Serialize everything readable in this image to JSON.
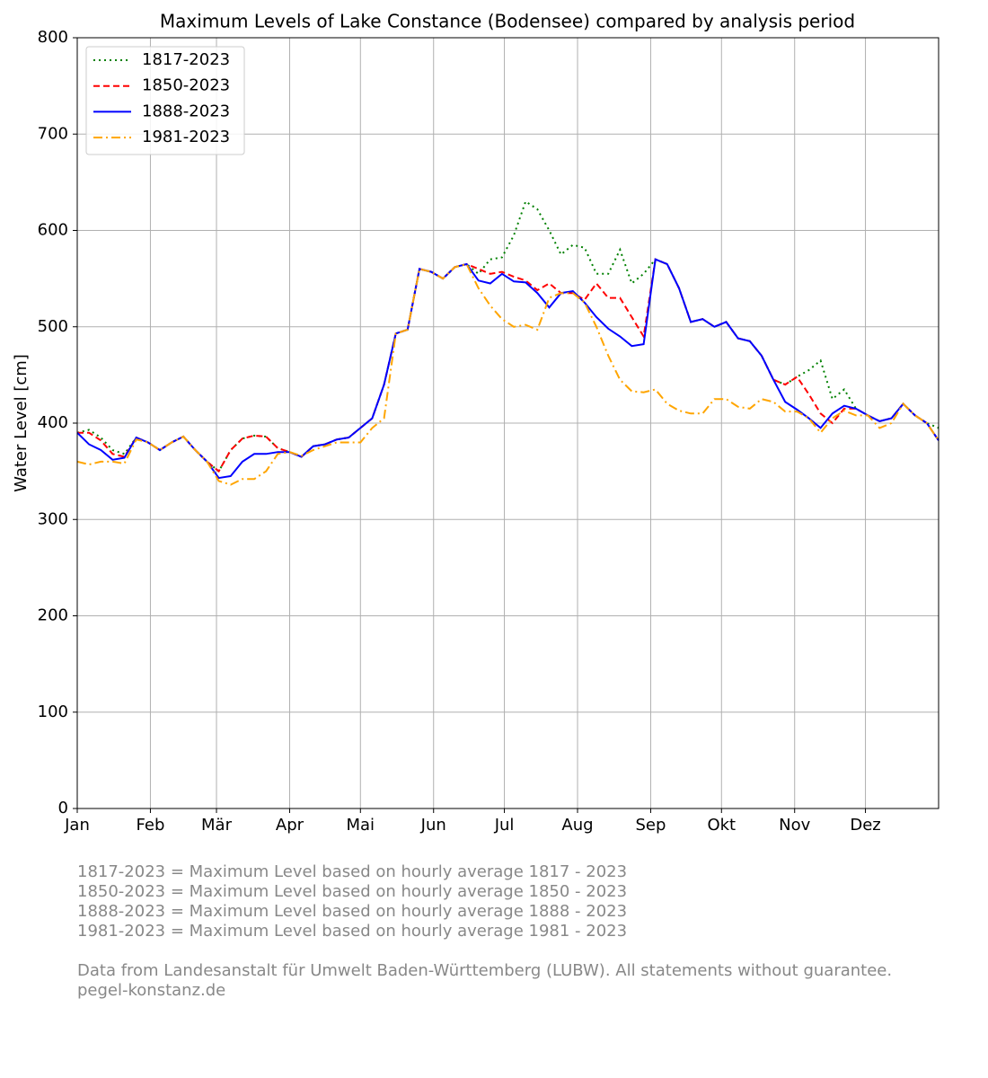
{
  "chart_data": {
    "type": "line",
    "title": "Maximum Levels of Lake Constance (Bodensee) compared by analysis period",
    "ylabel": "Water Level [cm]",
    "xlim": [
      0,
      365
    ],
    "ylim": [
      0,
      800
    ],
    "xticks": [
      {
        "value": 0,
        "label": "Jan"
      },
      {
        "value": 31,
        "label": "Feb"
      },
      {
        "value": 59,
        "label": "Mär"
      },
      {
        "value": 90,
        "label": "Apr"
      },
      {
        "value": 120,
        "label": "Mai"
      },
      {
        "value": 151,
        "label": "Jun"
      },
      {
        "value": 181,
        "label": "Jul"
      },
      {
        "value": 212,
        "label": "Aug"
      },
      {
        "value": 243,
        "label": "Sep"
      },
      {
        "value": 273,
        "label": "Okt"
      },
      {
        "value": 304,
        "label": "Nov"
      },
      {
        "value": 334,
        "label": "Dez"
      }
    ],
    "yticks": [
      0,
      100,
      200,
      300,
      400,
      500,
      600,
      700,
      800
    ],
    "grid": true,
    "legend": "upper left",
    "x": [
      0,
      5,
      10,
      15,
      20,
      25,
      30,
      35,
      40,
      45,
      50,
      55,
      60,
      65,
      70,
      75,
      80,
      85,
      90,
      95,
      100,
      105,
      110,
      115,
      120,
      125,
      130,
      135,
      140,
      145,
      150,
      155,
      160,
      165,
      170,
      175,
      180,
      185,
      190,
      195,
      200,
      205,
      210,
      215,
      220,
      225,
      230,
      235,
      240,
      245,
      250,
      255,
      260,
      265,
      270,
      275,
      280,
      285,
      290,
      295,
      300,
      305,
      310,
      315,
      320,
      325,
      330,
      335,
      340,
      345,
      350,
      355,
      360,
      365
    ],
    "series": [
      {
        "name": "1817-2023",
        "color": "green",
        "linestyle": "dotted",
        "values": [
          390,
          393,
          385,
          372,
          368,
          385,
          380,
          372,
          380,
          386,
          372,
          360,
          350,
          372,
          384,
          387,
          386,
          374,
          370,
          365,
          376,
          378,
          383,
          385,
          395,
          405,
          440,
          493,
          497,
          560,
          557,
          550,
          562,
          565,
          555,
          570,
          572,
          595,
          630,
          622,
          600,
          575,
          585,
          582,
          555,
          555,
          580,
          545,
          555,
          570,
          565,
          540,
          505,
          508,
          500,
          505,
          488,
          485,
          470,
          445,
          440,
          448,
          455,
          465,
          425,
          435,
          415,
          408,
          402,
          405,
          420,
          408,
          400,
          395
        ]
      },
      {
        "name": "1850-2023",
        "color": "red",
        "linestyle": "dashed",
        "values": [
          390,
          390,
          382,
          368,
          365,
          385,
          380,
          372,
          380,
          386,
          372,
          360,
          350,
          372,
          384,
          387,
          386,
          374,
          370,
          365,
          376,
          378,
          383,
          385,
          395,
          405,
          440,
          493,
          497,
          560,
          557,
          550,
          562,
          565,
          560,
          555,
          557,
          552,
          548,
          538,
          545,
          535,
          535,
          528,
          545,
          530,
          530,
          510,
          490,
          570,
          565,
          540,
          505,
          508,
          500,
          505,
          488,
          485,
          470,
          445,
          440,
          448,
          430,
          410,
          400,
          415,
          415,
          408,
          402,
          405,
          420,
          408,
          400,
          382
        ]
      },
      {
        "name": "1888-2023",
        "color": "blue",
        "linestyle": "solid",
        "values": [
          390,
          378,
          372,
          362,
          364,
          385,
          380,
          372,
          380,
          386,
          372,
          360,
          343,
          345,
          360,
          368,
          368,
          370,
          370,
          365,
          376,
          378,
          383,
          385,
          395,
          405,
          440,
          493,
          497,
          560,
          557,
          550,
          562,
          565,
          548,
          545,
          555,
          547,
          546,
          535,
          520,
          535,
          537,
          525,
          510,
          498,
          490,
          480,
          482,
          570,
          565,
          540,
          505,
          508,
          500,
          505,
          488,
          485,
          470,
          445,
          422,
          414,
          405,
          395,
          410,
          418,
          415,
          408,
          402,
          405,
          420,
          408,
          400,
          382
        ]
      },
      {
        "name": "1981-2023",
        "color": "orange",
        "linestyle": "dashdot",
        "values": [
          360,
          357,
          360,
          360,
          358,
          383,
          380,
          372,
          380,
          386,
          372,
          360,
          340,
          336,
          342,
          342,
          350,
          368,
          370,
          366,
          372,
          376,
          380,
          380,
          380,
          395,
          405,
          493,
          497,
          560,
          557,
          550,
          562,
          565,
          540,
          522,
          508,
          500,
          502,
          497,
          530,
          535,
          535,
          525,
          500,
          470,
          445,
          433,
          432,
          435,
          420,
          413,
          410,
          410,
          425,
          425,
          417,
          415,
          425,
          422,
          412,
          412,
          405,
          390,
          405,
          413,
          408,
          408,
          395,
          400,
          420,
          408,
          400,
          382
        ]
      }
    ],
    "notes": [
      "1817-2023 = Maximum Level based on hourly average 1817 - 2023",
      "1850-2023 = Maximum Level based on hourly average 1850 - 2023",
      "1888-2023 = Maximum Level based on hourly average 1888 - 2023",
      "1981-2023 = Maximum Level based on hourly average 1981 - 2023",
      "Data from Landesanstalt für Umwelt Baden-Württemberg (LUBW). All statements without guarantee.",
      "pegel-konstanz.de"
    ]
  }
}
